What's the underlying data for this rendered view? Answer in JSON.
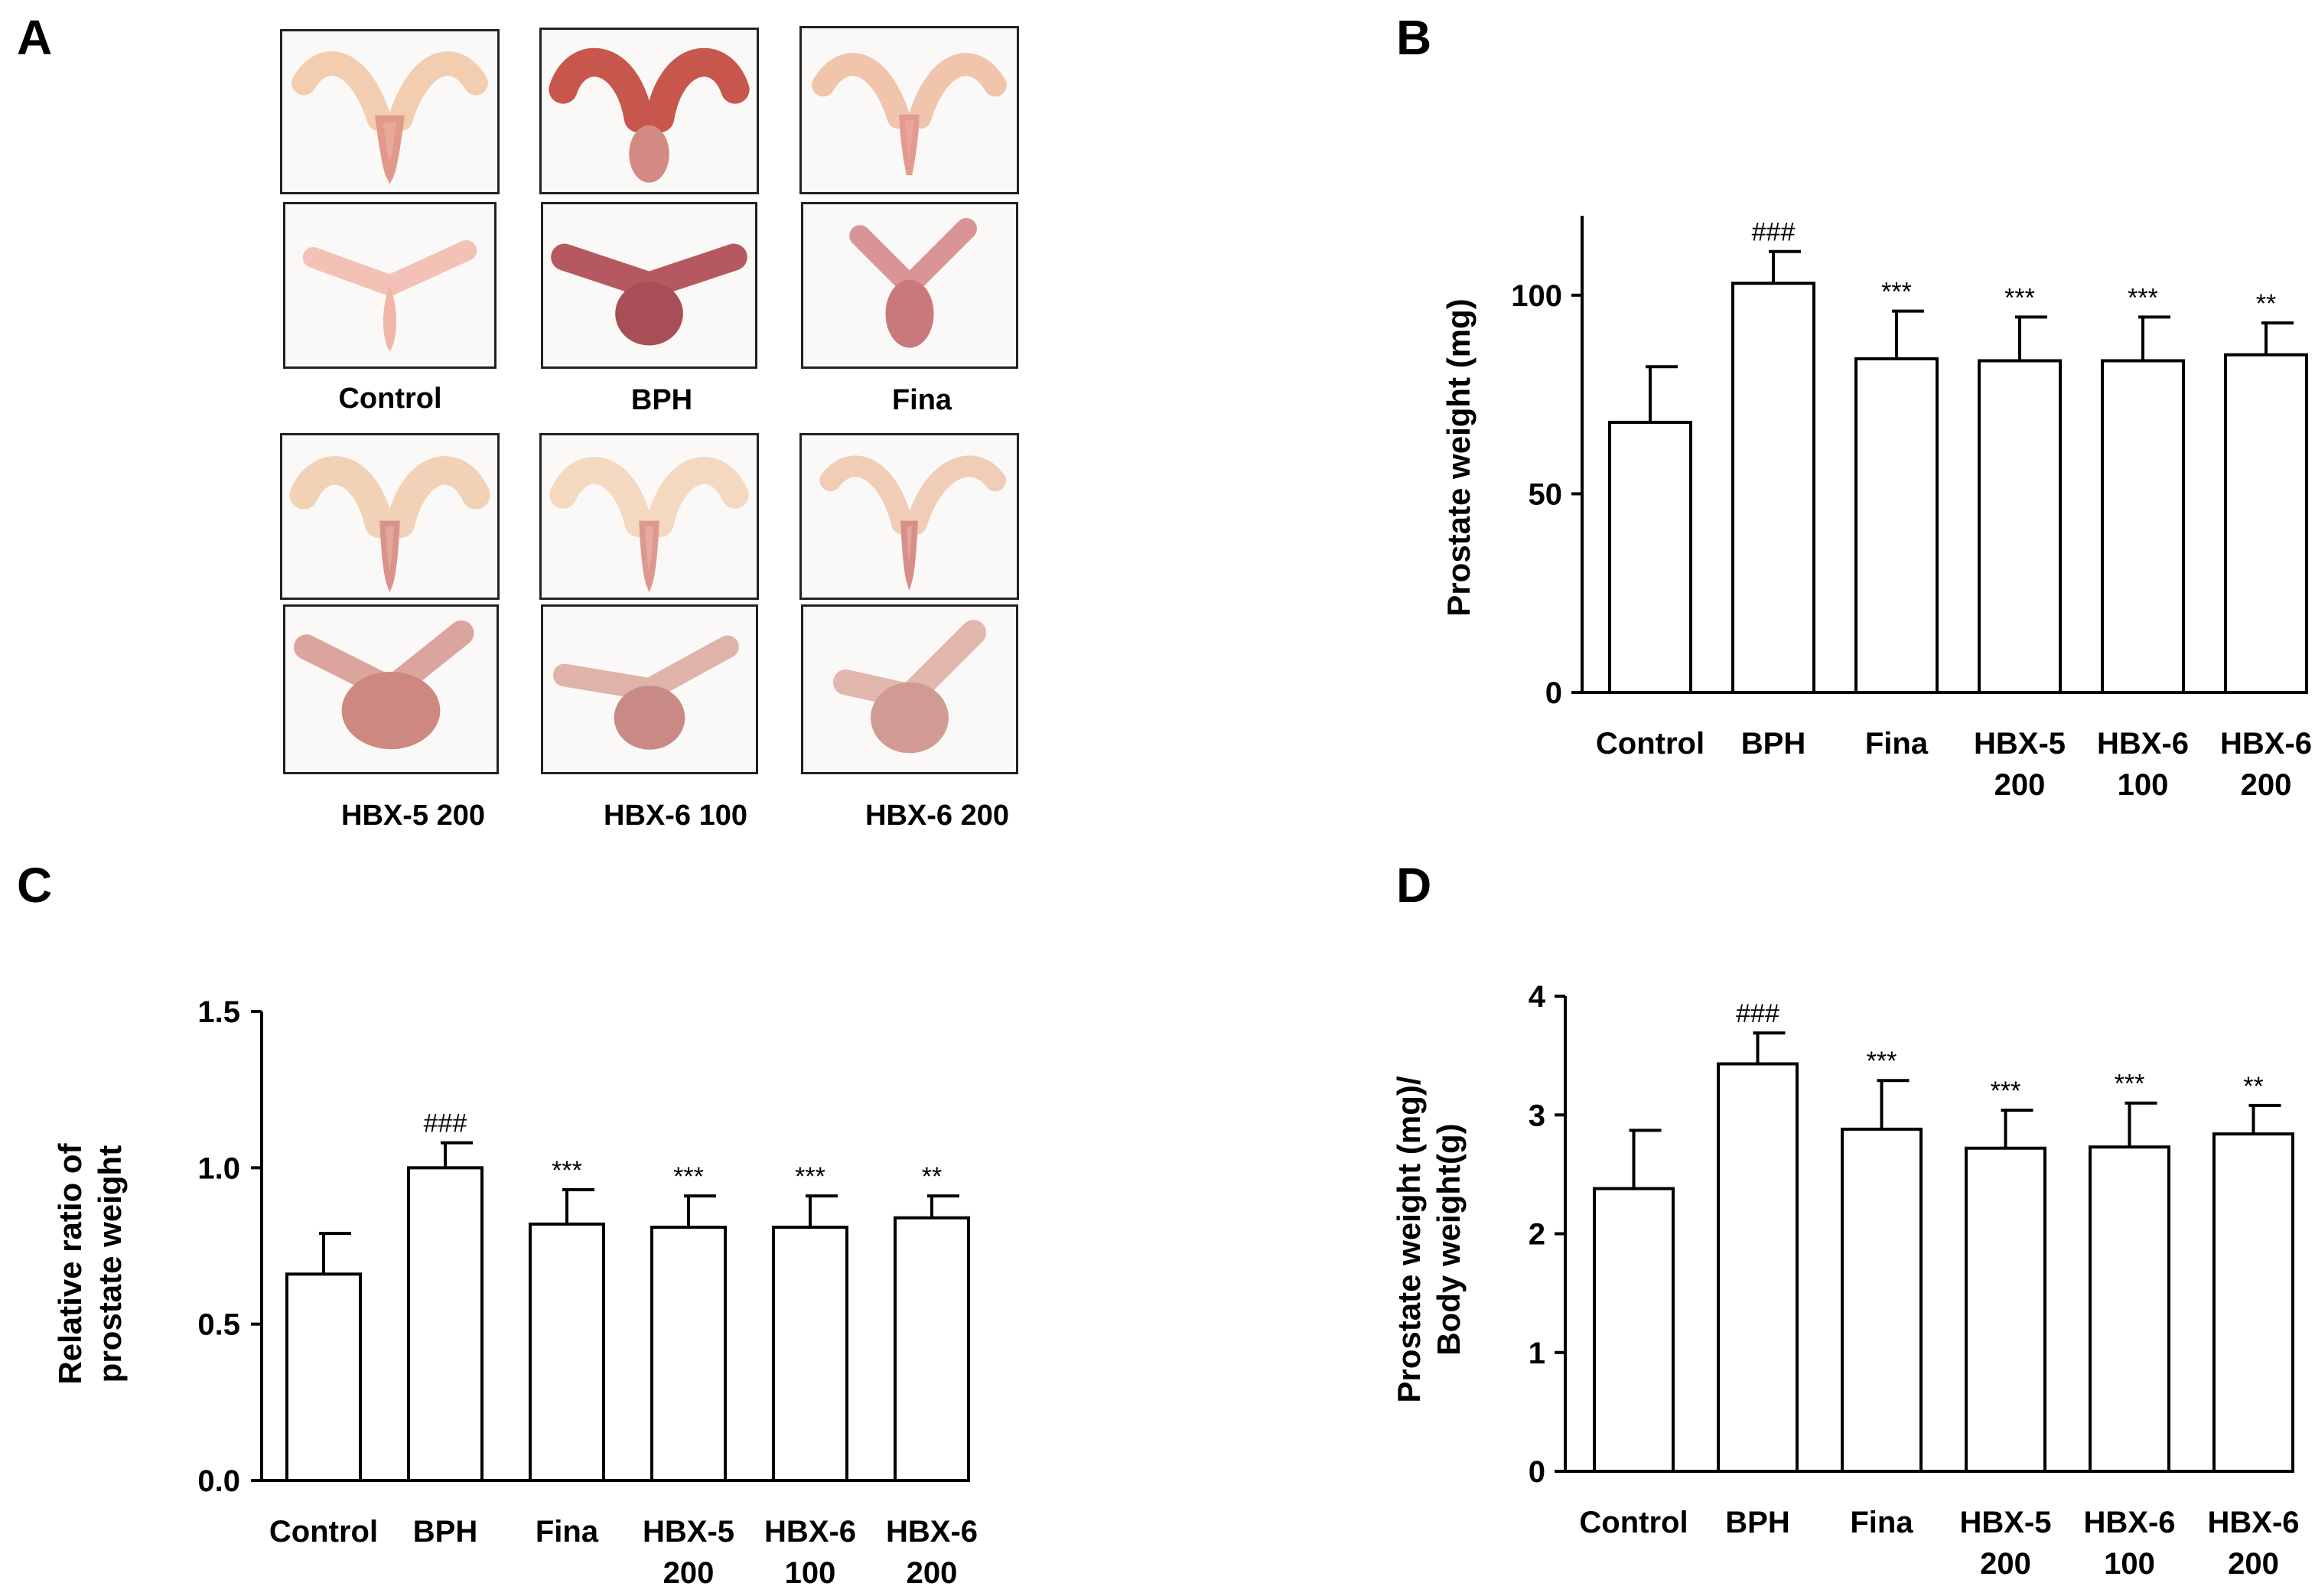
{
  "panels": {
    "a": {
      "letter": "A"
    },
    "b": {
      "letter": "B"
    },
    "c": {
      "letter": "C"
    },
    "d": {
      "letter": "D"
    }
  },
  "photo_panel": {
    "groups_top": [
      "Control",
      "BPH",
      "Fina"
    ],
    "groups_bottom": [
      "HBX-5 200",
      "HBX-6 100",
      "HBX-6 200"
    ]
  },
  "colors": {
    "bar_fill": "#ffffff",
    "bar_stroke": "#000000"
  },
  "chart_data": [
    {
      "panel": "B",
      "type": "bar",
      "categories": [
        {
          "line1": "Control",
          "line2": ""
        },
        {
          "line1": "BPH",
          "line2": ""
        },
        {
          "line1": "Fina",
          "line2": ""
        },
        {
          "line1": "HBX-5",
          "line2": "200"
        },
        {
          "line1": "HBX-6",
          "line2": "100"
        },
        {
          "line1": "HBX-6",
          "line2": "200"
        }
      ],
      "values": [
        68,
        103,
        84,
        83.5,
        83.5,
        85
      ],
      "errors": [
        14,
        8,
        12,
        11,
        11,
        8
      ],
      "significance": [
        "",
        "###",
        "***",
        "***",
        "***",
        "**"
      ],
      "title": "",
      "xlabel": "",
      "ylabel_lines": [
        "Prostate weight (mg)"
      ],
      "ylim": [
        0,
        120
      ],
      "yticks": [
        0,
        50,
        100
      ],
      "ytick_labels": [
        "0",
        "50",
        "100"
      ]
    },
    {
      "panel": "C",
      "type": "bar",
      "categories": [
        {
          "line1": "Control",
          "line2": ""
        },
        {
          "line1": "BPH",
          "line2": ""
        },
        {
          "line1": "Fina",
          "line2": ""
        },
        {
          "line1": "HBX-5",
          "line2": "200"
        },
        {
          "line1": "HBX-6",
          "line2": "100"
        },
        {
          "line1": "HBX-6",
          "line2": "200"
        }
      ],
      "values": [
        0.66,
        1.0,
        0.82,
        0.81,
        0.81,
        0.84
      ],
      "errors": [
        0.13,
        0.08,
        0.11,
        0.1,
        0.1,
        0.07
      ],
      "significance": [
        "",
        "###",
        "***",
        "***",
        "***",
        "**"
      ],
      "title": "",
      "xlabel": "",
      "ylabel_lines": [
        "Relative ratio of",
        "prostate weight"
      ],
      "ylim": [
        0,
        1.5
      ],
      "yticks": [
        0,
        0.5,
        1.0,
        1.5
      ],
      "ytick_labels": [
        "0.0",
        "0.5",
        "1.0",
        "1.5"
      ]
    },
    {
      "panel": "D",
      "type": "bar",
      "categories": [
        {
          "line1": "Control",
          "line2": ""
        },
        {
          "line1": "BPH",
          "line2": ""
        },
        {
          "line1": "Fina",
          "line2": ""
        },
        {
          "line1": "HBX-5",
          "line2": "200"
        },
        {
          "line1": "HBX-6",
          "line2": "100"
        },
        {
          "line1": "HBX-6",
          "line2": "200"
        }
      ],
      "values": [
        2.38,
        3.43,
        2.88,
        2.72,
        2.73,
        2.84
      ],
      "errors": [
        0.49,
        0.26,
        0.41,
        0.32,
        0.37,
        0.24
      ],
      "significance": [
        "",
        "###",
        "***",
        "***",
        "***",
        "**"
      ],
      "title": "",
      "xlabel": "",
      "ylabel_lines": [
        "Prostate weight (mg)/",
        "Body weight(g)"
      ],
      "ylim": [
        0,
        4
      ],
      "yticks": [
        0,
        1,
        2,
        3,
        4
      ],
      "ytick_labels": [
        "0",
        "1",
        "2",
        "3",
        "4"
      ]
    }
  ]
}
